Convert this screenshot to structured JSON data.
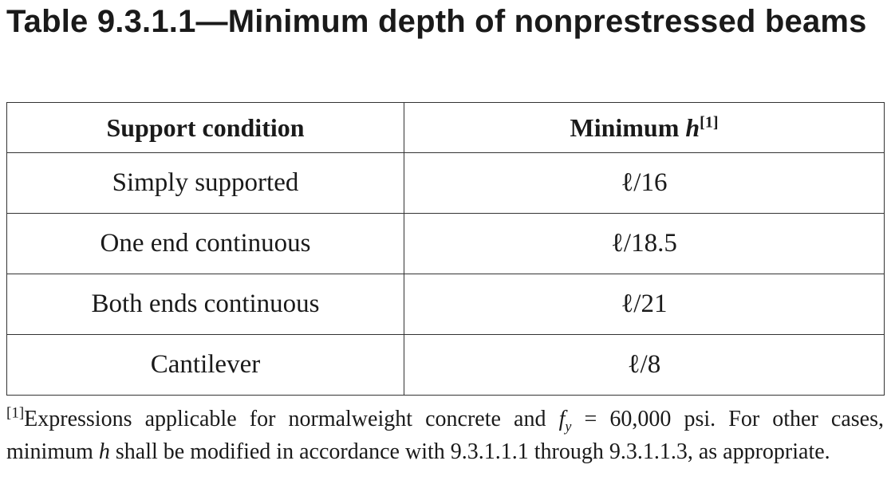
{
  "title": "Table 9.3.1.1—Minimum depth of nonprestressed beams",
  "table": {
    "headers": {
      "support_condition": "Support condition",
      "minimum_prefix": "Minimum ",
      "minimum_var": "h",
      "minimum_sup": "[1]"
    },
    "rows": [
      {
        "condition": "Simply supported",
        "minimum": "ℓ/16"
      },
      {
        "condition": "One end continuous",
        "minimum": "ℓ/18.5"
      },
      {
        "condition": "Both ends continuous",
        "minimum": "ℓ/21"
      },
      {
        "condition": "Cantilever",
        "minimum": "ℓ/8"
      }
    ]
  },
  "footnote": {
    "marker": "[1]",
    "part1": "Expressions applicable for normalweight concrete and ",
    "var_f": "f",
    "var_f_sub": "y",
    "part2": " = 60,000 psi. For other cases, minimum ",
    "var_h": "h",
    "part3": " shall be modified in accordance with 9.3.1.1.1 through 9.3.1.1.3, as appropriate."
  }
}
